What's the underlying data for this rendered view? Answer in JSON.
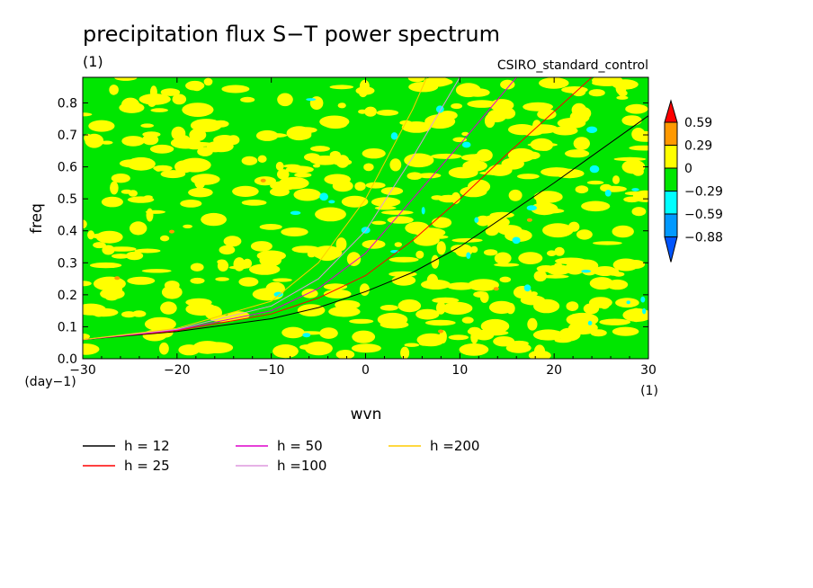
{
  "chart_data": {
    "type": "heatmap",
    "title": "precipitation flux S−T power spectrum",
    "subtitle": "(1)",
    "source_label": "CSIRO_standard_control",
    "xlabel": "wvn",
    "ylabel": "freq",
    "x_unit": "(1)",
    "y_unit": "(day−1)",
    "xlim": [
      -30,
      30
    ],
    "ylim": [
      0,
      0.88
    ],
    "x_ticks": [
      -30,
      -20,
      -10,
      0,
      10,
      20,
      30
    ],
    "x_tick_labels": [
      "−30",
      "−20",
      "−10",
      "0",
      "10",
      "20",
      "30"
    ],
    "y_ticks": [
      0,
      0.1,
      0.2,
      0.3,
      0.4,
      0.5,
      0.6,
      0.7,
      0.8
    ],
    "y_tick_labels": [
      "0.0",
      "0.1",
      "0.2",
      "0.3",
      "0.4",
      "0.5",
      "0.6",
      "0.7",
      "0.8"
    ],
    "colorbar": {
      "levels": [
        "0.59",
        "0.29",
        "0",
        "−0.29",
        "−0.59",
        "−0.88"
      ],
      "colors": [
        "#ff0000",
        "#ff9900",
        "#ffff00",
        "#00e600",
        "#00ffff",
        "#0099ff",
        "#0055ff"
      ]
    },
    "field_note_colors": {
      "positive": "#ffff00",
      "neutral": "#00e600"
    },
    "dispersion_curves": [
      {
        "name": "h = 12",
        "color": "#000000",
        "points": [
          [
            -30,
            0.06
          ],
          [
            -20,
            0.085
          ],
          [
            -10,
            0.125
          ],
          [
            -5,
            0.16
          ],
          [
            0,
            0.21
          ],
          [
            5,
            0.27
          ],
          [
            10,
            0.35
          ],
          [
            20,
            0.55
          ],
          [
            30,
            0.76
          ]
        ]
      },
      {
        "name": "h = 25",
        "color": "#ff0000",
        "points": [
          [
            -30,
            0.06
          ],
          [
            -20,
            0.088
          ],
          [
            -10,
            0.14
          ],
          [
            -5,
            0.19
          ],
          [
            0,
            0.26
          ],
          [
            5,
            0.37
          ],
          [
            10,
            0.5
          ],
          [
            15,
            0.64
          ],
          [
            24,
            0.88
          ]
        ]
      },
      {
        "name": "h = 50",
        "color": "#dd00cc",
        "points": [
          [
            -30,
            0.06
          ],
          [
            -20,
            0.09
          ],
          [
            -10,
            0.15
          ],
          [
            -5,
            0.22
          ],
          [
            0,
            0.33
          ],
          [
            5,
            0.5
          ],
          [
            10,
            0.67
          ],
          [
            16,
            0.88
          ]
        ]
      },
      {
        "name": "h =100",
        "color": "#dd99dd",
        "points": [
          [
            -30,
            0.06
          ],
          [
            -20,
            0.092
          ],
          [
            -10,
            0.165
          ],
          [
            -5,
            0.25
          ],
          [
            0,
            0.4
          ],
          [
            5,
            0.63
          ],
          [
            10,
            0.88
          ]
        ]
      },
      {
        "name": "h =200",
        "color": "#ffcc00",
        "points": [
          [
            -30,
            0.06
          ],
          [
            -20,
            0.095
          ],
          [
            -10,
            0.18
          ],
          [
            -5,
            0.3
          ],
          [
            0,
            0.5
          ],
          [
            5,
            0.78
          ],
          [
            6.5,
            0.88
          ]
        ]
      }
    ],
    "legend_placement": "bottom",
    "grid": false
  }
}
